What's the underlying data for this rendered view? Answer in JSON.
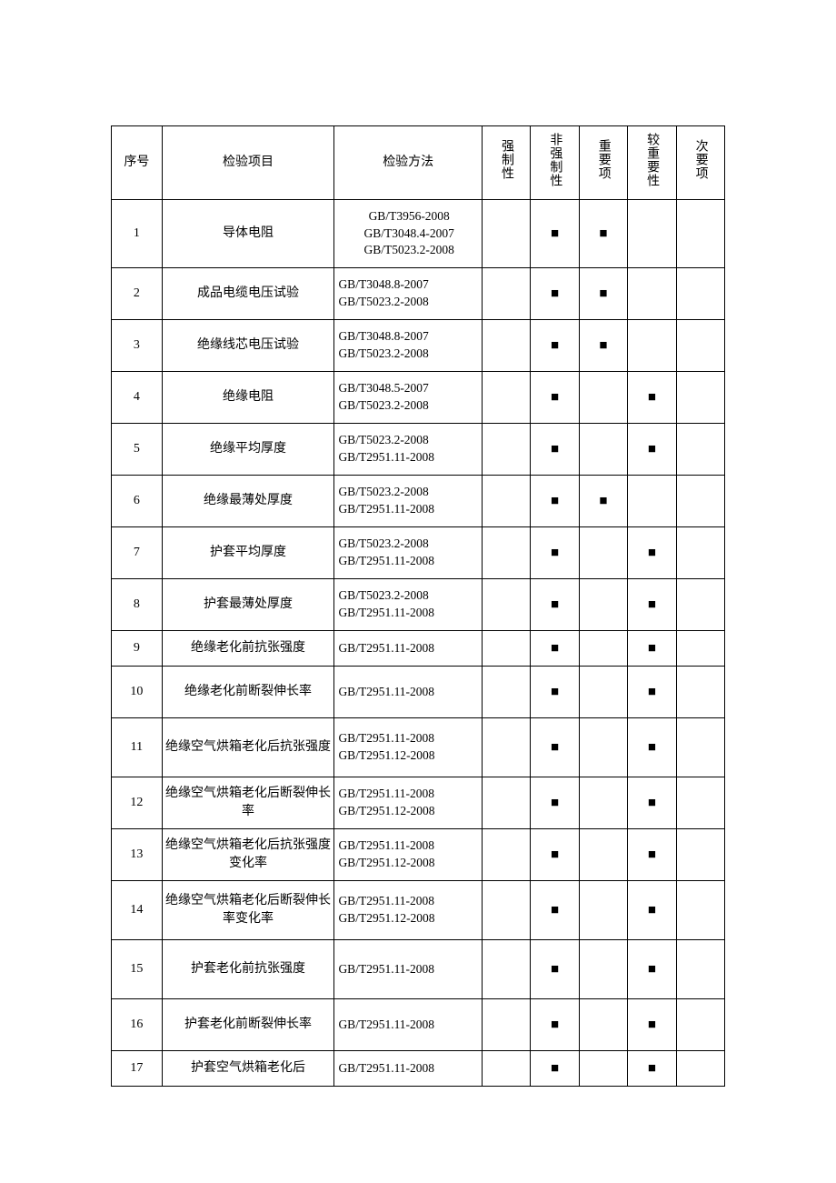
{
  "headers": {
    "seq": "序号",
    "item": "检验项目",
    "method": "检验方法",
    "mandatory": "强制性",
    "nonmandatory": "非强制性",
    "important": "重要项",
    "moreimportant": "较重要性",
    "minor": "次要项"
  },
  "mark_char": "■",
  "rows": [
    {
      "n": "1",
      "item": "导体电阻",
      "methods": [
        "GB/T3956-2008",
        "GB/T3048.4-2007",
        "GB/T5023.2-2008"
      ],
      "mc": "center",
      "h": "r-xtall",
      "marks": [
        false,
        true,
        true,
        false,
        false
      ]
    },
    {
      "n": "2",
      "item": "成品电缆电压试验",
      "methods": [
        "GB/T3048.8-2007",
        "GB/T5023.2-2008"
      ],
      "mc": "left",
      "h": "r-med",
      "marks": [
        false,
        true,
        true,
        false,
        false
      ]
    },
    {
      "n": "3",
      "item": "绝缘线芯电压试验",
      "methods": [
        "GB/T3048.8-2007",
        "GB/T5023.2-2008"
      ],
      "mc": "left",
      "h": "r-med",
      "marks": [
        false,
        true,
        true,
        false,
        false
      ]
    },
    {
      "n": "4",
      "item": "绝缘电阻",
      "methods": [
        "GB/T3048.5-2007",
        "GB/T5023.2-2008"
      ],
      "mc": "left",
      "h": "r-med",
      "marks": [
        false,
        true,
        false,
        true,
        false
      ]
    },
    {
      "n": "5",
      "item": "绝缘平均厚度",
      "methods": [
        "GB/T5023.2-2008",
        "GB/T2951.11-2008"
      ],
      "mc": "left",
      "h": "r-med",
      "marks": [
        false,
        true,
        false,
        true,
        false
      ]
    },
    {
      "n": "6",
      "item": "绝缘最薄处厚度",
      "methods": [
        "GB/T5023.2-2008",
        "GB/T2951.11-2008"
      ],
      "mc": "left",
      "h": "r-med",
      "marks": [
        false,
        true,
        true,
        false,
        false
      ]
    },
    {
      "n": "7",
      "item": "护套平均厚度",
      "methods": [
        "GB/T5023.2-2008",
        "GB/T2951.11-2008"
      ],
      "mc": "left",
      "h": "r-med",
      "marks": [
        false,
        true,
        false,
        true,
        false
      ]
    },
    {
      "n": "8",
      "item": "护套最薄处厚度",
      "methods": [
        "GB/T5023.2-2008",
        "GB/T2951.11-2008"
      ],
      "mc": "left",
      "h": "r-med",
      "marks": [
        false,
        true,
        false,
        true,
        false
      ]
    },
    {
      "n": "9",
      "item": "绝缘老化前抗张强度",
      "methods": [
        "GB/T2951.11-2008"
      ],
      "mc": "left",
      "h": "r-short",
      "marks": [
        false,
        true,
        false,
        true,
        false
      ]
    },
    {
      "n": "10",
      "item": "绝缘老化前断裂伸长率",
      "methods": [
        "GB/T2951.11-2008"
      ],
      "mc": "left",
      "h": "r-med",
      "marks": [
        false,
        true,
        false,
        true,
        false
      ]
    },
    {
      "n": "11",
      "item": "绝缘空气烘箱老化后抗张强度",
      "methods": [
        "GB/T2951.11-2008",
        "GB/T2951.12-2008"
      ],
      "mc": "left",
      "h": "r-tall",
      "marks": [
        false,
        true,
        false,
        true,
        false
      ]
    },
    {
      "n": "12",
      "item": "绝缘空气烘箱老化后断裂伸长率",
      "methods": [
        "GB/T2951.11-2008",
        "GB/T2951.12-2008"
      ],
      "mc": "left",
      "h": "r-med",
      "marks": [
        false,
        true,
        false,
        true,
        false
      ]
    },
    {
      "n": "13",
      "item": "绝缘空气烘箱老化后抗张强度变化率",
      "methods": [
        "GB/T2951.11-2008",
        "GB/T2951.12-2008"
      ],
      "mc": "left",
      "h": "r-med",
      "marks": [
        false,
        true,
        false,
        true,
        false
      ]
    },
    {
      "n": "14",
      "item": "绝缘空气烘箱老化后断裂伸长率变化率",
      "methods": [
        "GB/T2951.11-2008",
        "GB/T2951.12-2008"
      ],
      "mc": "left",
      "h": "r-tall",
      "marks": [
        false,
        true,
        false,
        true,
        false
      ]
    },
    {
      "n": "15",
      "item": "护套老化前抗张强度",
      "methods": [
        "GB/T2951.11-2008"
      ],
      "mc": "left",
      "h": "r-tall",
      "marks": [
        false,
        true,
        false,
        true,
        false
      ]
    },
    {
      "n": "16",
      "item": "护套老化前断裂伸长率",
      "methods": [
        "GB/T2951.11-2008"
      ],
      "mc": "left",
      "h": "r-med",
      "marks": [
        false,
        true,
        false,
        true,
        false
      ]
    },
    {
      "n": "17",
      "item": "护套空气烘箱老化后",
      "methods": [
        "GB/T2951.11-2008"
      ],
      "mc": "left",
      "h": "r-short",
      "marks": [
        false,
        true,
        false,
        true,
        false
      ]
    }
  ]
}
